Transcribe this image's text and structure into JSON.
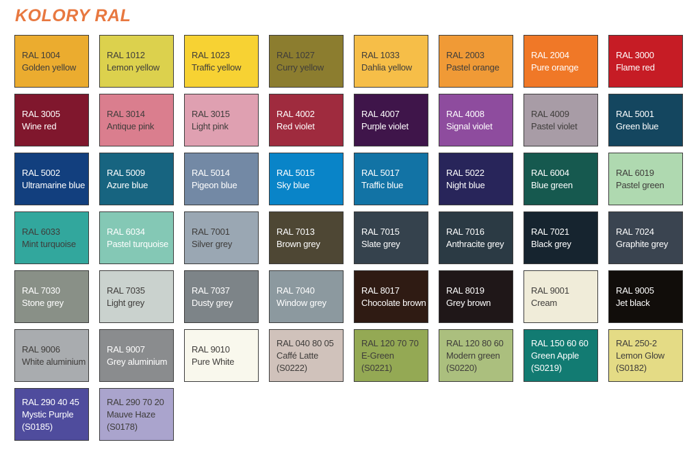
{
  "title": "KOLORY RAL",
  "colors": {
    "title": "#E87840",
    "dark_text": "#3E3C3A",
    "light_text": "#FFFFFF",
    "border": "#3A3A3A",
    "background": "#FFFFFF"
  },
  "swatches": [
    {
      "code": "RAL 1004",
      "name": "Golden yellow",
      "bg": "#EBAC2F",
      "text": "dark"
    },
    {
      "code": "RAL 1012",
      "name": "Lemon yellow",
      "bg": "#DCD14D",
      "text": "dark"
    },
    {
      "code": "RAL 1023",
      "name": "Traffic yellow",
      "bg": "#F7D233",
      "text": "dark"
    },
    {
      "code": "RAL 1027",
      "name": "Curry yellow",
      "bg": "#8C7D2F",
      "text": "dark"
    },
    {
      "code": "RAL 1033",
      "name": "Dahlia yellow",
      "bg": "#F6BE48",
      "text": "dark"
    },
    {
      "code": "RAL 2003",
      "name": "Pastel orange",
      "bg": "#F09A36",
      "text": "dark"
    },
    {
      "code": "RAL 2004",
      "name": "Pure orange",
      "bg": "#F07827",
      "text": "light"
    },
    {
      "code": "RAL 3000",
      "name": "Flame red",
      "bg": "#C61C25",
      "text": "light"
    },
    {
      "code": "RAL 3005",
      "name": "Wine red",
      "bg": "#80172D",
      "text": "light"
    },
    {
      "code": "RAL 3014",
      "name": "Antique pink",
      "bg": "#DA7E8E",
      "text": "dark"
    },
    {
      "code": "RAL 3015",
      "name": "Light pink",
      "bg": "#DFA0B1",
      "text": "dark"
    },
    {
      "code": "RAL 4002",
      "name": "Red violet",
      "bg": "#9F2B3E",
      "text": "light"
    },
    {
      "code": "RAL 4007",
      "name": "Purple violet",
      "bg": "#3F154A",
      "text": "light"
    },
    {
      "code": "RAL 4008",
      "name": "Signal violet",
      "bg": "#8E4C9E",
      "text": "light"
    },
    {
      "code": "RAL 4009",
      "name": "Pastel violet",
      "bg": "#A89CA6",
      "text": "dark"
    },
    {
      "code": "RAL 5001",
      "name": "Green blue",
      "bg": "#14465F",
      "text": "light"
    },
    {
      "code": "RAL 5002",
      "name": "Ultramarine blue",
      "bg": "#123F7E",
      "text": "light"
    },
    {
      "code": "RAL 5009",
      "name": "Azure blue",
      "bg": "#176480",
      "text": "light"
    },
    {
      "code": "RAL 5014",
      "name": "Pigeon blue",
      "bg": "#7389A5",
      "text": "light"
    },
    {
      "code": "RAL 5015",
      "name": "Sky blue",
      "bg": "#0984C8",
      "text": "light"
    },
    {
      "code": "RAL 5017",
      "name": "Traffic blue",
      "bg": "#1273A5",
      "text": "light"
    },
    {
      "code": "RAL 5022",
      "name": "Night blue",
      "bg": "#28255A",
      "text": "light"
    },
    {
      "code": "RAL 6004",
      "name": "Blue green",
      "bg": "#16594F",
      "text": "light"
    },
    {
      "code": "RAL 6019",
      "name": "Pastel green",
      "bg": "#AFD9B0",
      "text": "dark"
    },
    {
      "code": "RAL 6033",
      "name": "Mint turquoise",
      "bg": "#32A79D",
      "text": "dark"
    },
    {
      "code": "RAL 6034",
      "name": "Pastel turquoise",
      "bg": "#84C8B5",
      "text": "light"
    },
    {
      "code": "RAL 7001",
      "name": "Silver grey",
      "bg": "#9AA7B3",
      "text": "dark"
    },
    {
      "code": "RAL 7013",
      "name": "Brown grey",
      "bg": "#4E4734",
      "text": "light"
    },
    {
      "code": "RAL 7015",
      "name": "Slate grey",
      "bg": "#35424D",
      "text": "light"
    },
    {
      "code": "RAL 7016",
      "name": "Anthracite grey",
      "bg": "#2B3A44",
      "text": "light"
    },
    {
      "code": "RAL 7021",
      "name": "Black grey",
      "bg": "#16242F",
      "text": "light"
    },
    {
      "code": "RAL 7024",
      "name": "Graphite grey",
      "bg": "#3A4450",
      "text": "light"
    },
    {
      "code": "RAL 7030",
      "name": "Stone grey",
      "bg": "#899087",
      "text": "light"
    },
    {
      "code": "RAL 7035",
      "name": "Light grey",
      "bg": "#CAD2CE",
      "text": "dark"
    },
    {
      "code": "RAL 7037",
      "name": "Dusty grey",
      "bg": "#7D8488",
      "text": "light"
    },
    {
      "code": "RAL 7040",
      "name": "Window grey",
      "bg": "#8C999F",
      "text": "light"
    },
    {
      "code": "RAL 8017",
      "name": "Chocolate brown",
      "bg": "#2F1B13",
      "text": "light"
    },
    {
      "code": "RAL 8019",
      "name": "Grey brown",
      "bg": "#1F1718",
      "text": "light"
    },
    {
      "code": "RAL 9001",
      "name": "Cream",
      "bg": "#F0ECD9",
      "text": "dark"
    },
    {
      "code": "RAL 9005",
      "name": "Jet black",
      "bg": "#110D0A",
      "text": "light"
    },
    {
      "code": "RAL 9006",
      "name": "White aluminium",
      "bg": "#A9ACAF",
      "text": "dark"
    },
    {
      "code": "RAL 9007",
      "name": "Grey aluminium",
      "bg": "#8A8C8E",
      "text": "light"
    },
    {
      "code": "RAL 9010",
      "name": "Pure White",
      "bg": "#F9F8ED",
      "text": "dark"
    },
    {
      "code": "RAL 040 80 05",
      "name": "Caffé Latte",
      "note": "(S0222)",
      "bg": "#D0C2BB",
      "text": "dark"
    },
    {
      "code": "RAL 120 70 70",
      "name": "E-Green",
      "note": "(S0221)",
      "bg": "#94A954",
      "text": "dark"
    },
    {
      "code": "RAL 120 80 60",
      "name": "Modern green",
      "note": "(S0220)",
      "bg": "#ABBF7E",
      "text": "dark"
    },
    {
      "code": "RAL 150 60 60",
      "name": "Green Apple",
      "note": "(S0219)",
      "bg": "#127B72",
      "text": "light"
    },
    {
      "code": "RAL 250-2",
      "name": "Lemon Glow",
      "note": "(S0182)",
      "bg": "#E4DB85",
      "text": "dark"
    },
    {
      "code": "RAL 290 40 45",
      "name": "Mystic Purple",
      "note": "(S0185)",
      "bg": "#4F4C9D",
      "text": "light"
    },
    {
      "code": "RAL 290 70 20",
      "name": "Mauve Haze",
      "note": "(S0178)",
      "bg": "#AAA4CD",
      "text": "dark"
    }
  ]
}
